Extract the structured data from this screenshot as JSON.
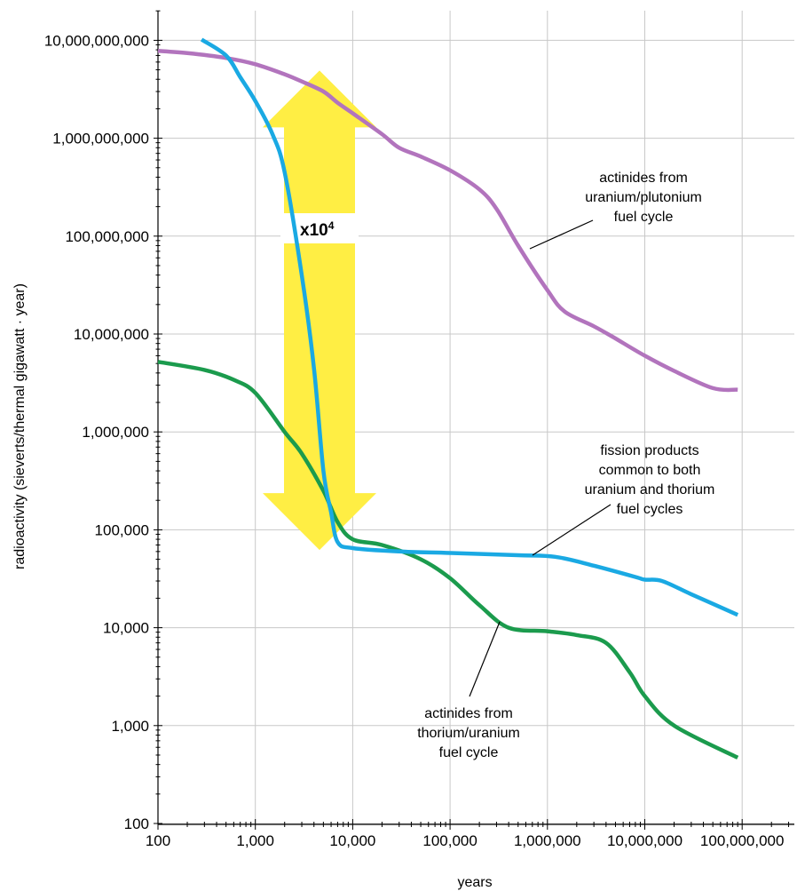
{
  "chart_data": {
    "type": "line",
    "title": "",
    "xlabel": "years",
    "ylabel": "radioactivity (sieverts/thermal gigawatt · year)",
    "x_scale": "log",
    "y_scale": "log",
    "xlim": [
      100,
      150000000
    ],
    "ylim": [
      100,
      30000000000
    ],
    "grid": true,
    "x_ticks": [
      100,
      1000,
      10000,
      100000,
      1000000,
      10000000,
      100000000
    ],
    "x_tick_labels": [
      "100",
      "1,000",
      "10,000",
      "100,000",
      "1,000,000",
      "10,000,000",
      "100,000,000"
    ],
    "y_ticks": [
      100,
      1000,
      10000,
      100000,
      1000000,
      10000000,
      100000000,
      1000000000,
      10000000000
    ],
    "y_tick_labels": [
      "100",
      "1,000",
      "10,000",
      "100,000",
      "1,000,000",
      "10,000,000",
      "100,000,000",
      "1,000,000,000",
      "10,000,000,000"
    ],
    "series": [
      {
        "color": "#b274bd",
        "points": [
          [
            100,
            7800000000
          ],
          [
            200,
            7400000000
          ],
          [
            500,
            6600000000
          ],
          [
            1000,
            5700000000
          ],
          [
            2000,
            4500000000
          ],
          [
            3000,
            3800000000
          ],
          [
            5000,
            3000000000
          ],
          [
            7000,
            2300000000
          ],
          [
            10000,
            1800000000
          ],
          [
            20000,
            1100000000
          ],
          [
            30000,
            800000000
          ],
          [
            50000,
            650000000
          ],
          [
            100000,
            470000000
          ],
          [
            200000,
            300000000
          ],
          [
            300000,
            190000000
          ],
          [
            500000,
            80000000
          ],
          [
            1000000,
            28000000
          ],
          [
            1500000,
            17000000
          ],
          [
            3000000,
            12000000
          ],
          [
            5000000,
            9000000
          ],
          [
            10000000,
            6000000
          ],
          [
            20000000,
            4200000
          ],
          [
            50000000,
            2800000
          ],
          [
            90000000,
            2700000
          ]
        ]
      },
      {
        "color": "#1aa9e3",
        "points": [
          [
            280,
            10200000000
          ],
          [
            500,
            7000000000
          ],
          [
            700,
            4200000000
          ],
          [
            1000,
            2400000000
          ],
          [
            1500,
            1100000000
          ],
          [
            2000,
            450000000
          ],
          [
            3000,
            40000000
          ],
          [
            4000,
            4500000
          ],
          [
            5000,
            400000
          ],
          [
            6000,
            150000
          ],
          [
            7000,
            75000
          ],
          [
            10000,
            65000
          ],
          [
            30000,
            60000
          ],
          [
            100000,
            58000
          ],
          [
            500000,
            55000
          ],
          [
            1200000,
            53000
          ],
          [
            3000000,
            43000
          ],
          [
            8000000,
            33000
          ],
          [
            10000000,
            31000
          ],
          [
            15000000,
            30000
          ],
          [
            30000000,
            22000
          ],
          [
            90000000,
            13500
          ]
        ]
      },
      {
        "color": "#1b9b4d",
        "points": [
          [
            100,
            5200000
          ],
          [
            300,
            4300000
          ],
          [
            600,
            3400000
          ],
          [
            1000,
            2500000
          ],
          [
            2000,
            1000000
          ],
          [
            3000,
            600000
          ],
          [
            5000,
            250000
          ],
          [
            7000,
            120000
          ],
          [
            10000,
            80000
          ],
          [
            20000,
            70000
          ],
          [
            50000,
            50000
          ],
          [
            100000,
            32000
          ],
          [
            200000,
            17000
          ],
          [
            400000,
            10000
          ],
          [
            1000000,
            9200.0
          ],
          [
            2000000,
            8400
          ],
          [
            4000000,
            7000
          ],
          [
            7000000,
            3500
          ],
          [
            10000000,
            2000
          ],
          [
            20000000,
            1000
          ],
          [
            90000000,
            470
          ]
        ]
      }
    ],
    "annotations": [
      {
        "lines": [
          "actinides from",
          "uranium/plutonium",
          "fuel cycle"
        ]
      },
      {
        "lines": [
          "fission products",
          "common to both",
          "uranium and thorium",
          "fuel cycles"
        ]
      },
      {
        "lines": [
          "actinides from",
          "thorium/uranium",
          "fuel cycle"
        ]
      }
    ],
    "arrow": {
      "from": 80000,
      "to": 2000000000,
      "color": "#ffee44",
      "label_main": "x10",
      "label_sup": "4"
    }
  }
}
